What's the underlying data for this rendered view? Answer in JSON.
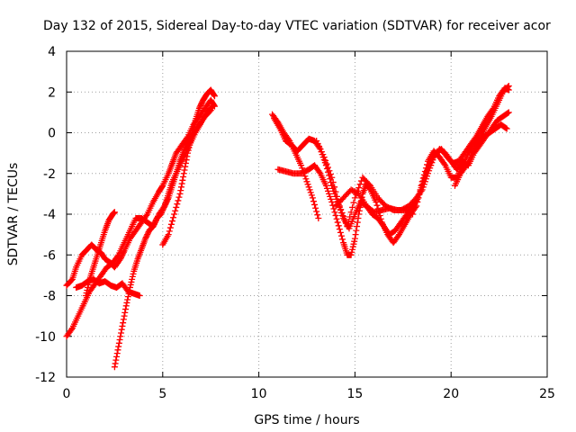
{
  "chart_data": {
    "type": "scatter",
    "title": "Day 132 of 2015, Sidereal Day-to-day VTEC variation (SDTVAR) for receiver acor",
    "xlabel": "GPS time / hours",
    "ylabel": "SDTVAR / TECUs",
    "xlim": [
      0,
      25
    ],
    "ylim": [
      -12,
      4
    ],
    "x_ticks": [
      0,
      5,
      10,
      15,
      20,
      25
    ],
    "y_ticks": [
      -12,
      -10,
      -8,
      -6,
      -4,
      -2,
      0,
      2,
      4
    ],
    "grid": true,
    "marker": "plus",
    "color": "#ff0000",
    "series": [
      {
        "points": [
          [
            0.0,
            -7.5
          ],
          [
            0.3,
            -7.2
          ],
          [
            0.5,
            -6.6
          ],
          [
            0.8,
            -6.0
          ],
          [
            1.0,
            -5.8
          ],
          [
            1.3,
            -5.5
          ],
          [
            1.5,
            -5.7
          ],
          [
            1.8,
            -5.9
          ],
          [
            2.0,
            -6.2
          ],
          [
            2.3,
            -6.4
          ],
          [
            2.5,
            -6.6
          ],
          [
            2.8,
            -6.2
          ],
          [
            3.0,
            -5.8
          ],
          [
            3.3,
            -5.2
          ],
          [
            3.6,
            -4.8
          ],
          [
            3.9,
            -4.4
          ],
          [
            4.2,
            -4.0
          ],
          [
            4.5,
            -3.4
          ],
          [
            4.8,
            -2.9
          ],
          [
            5.0,
            -2.6
          ],
          [
            5.3,
            -2.0
          ],
          [
            5.5,
            -1.5
          ],
          [
            5.7,
            -1.0
          ],
          [
            6.0,
            -0.6
          ],
          [
            6.3,
            -0.2
          ],
          [
            6.6,
            0.4
          ],
          [
            6.9,
            0.8
          ],
          [
            7.2,
            1.2
          ],
          [
            7.5,
            1.6
          ],
          [
            7.7,
            1.3
          ]
        ]
      },
      {
        "points": [
          [
            0.0,
            -10.0
          ],
          [
            0.3,
            -9.6
          ],
          [
            0.6,
            -9.0
          ],
          [
            0.9,
            -8.4
          ],
          [
            1.2,
            -7.8
          ],
          [
            1.5,
            -7.4
          ],
          [
            1.8,
            -7.0
          ],
          [
            2.1,
            -6.6
          ],
          [
            2.4,
            -6.4
          ],
          [
            2.7,
            -6.0
          ],
          [
            3.0,
            -5.4
          ],
          [
            3.3,
            -4.8
          ],
          [
            3.6,
            -4.2
          ],
          [
            3.9,
            -4.2
          ],
          [
            4.2,
            -4.4
          ],
          [
            4.5,
            -4.6
          ],
          [
            4.8,
            -4.0
          ],
          [
            5.1,
            -3.6
          ],
          [
            5.3,
            -3.0
          ],
          [
            5.5,
            -2.4
          ],
          [
            5.8,
            -1.8
          ],
          [
            6.1,
            -1.2
          ],
          [
            6.4,
            -0.6
          ],
          [
            6.7,
            0.0
          ],
          [
            7.0,
            0.5
          ],
          [
            7.3,
            1.0
          ],
          [
            7.6,
            1.3
          ]
        ]
      },
      {
        "points": [
          [
            0.5,
            -7.6
          ],
          [
            0.8,
            -7.5
          ],
          [
            1.1,
            -7.3
          ],
          [
            1.4,
            -7.2
          ],
          [
            1.7,
            -7.4
          ],
          [
            2.0,
            -7.3
          ],
          [
            2.3,
            -7.5
          ],
          [
            2.6,
            -7.6
          ],
          [
            2.9,
            -7.4
          ],
          [
            3.2,
            -7.8
          ],
          [
            3.5,
            -7.9
          ],
          [
            3.8,
            -8.0
          ]
        ]
      },
      {
        "points": [
          [
            1.0,
            -8.0
          ],
          [
            1.2,
            -7.2
          ],
          [
            1.4,
            -6.6
          ],
          [
            1.6,
            -6.0
          ],
          [
            1.8,
            -5.4
          ],
          [
            2.0,
            -4.8
          ],
          [
            2.2,
            -4.3
          ],
          [
            2.4,
            -4.0
          ],
          [
            2.5,
            -3.9
          ]
        ]
      },
      {
        "points": [
          [
            2.5,
            -11.5
          ],
          [
            2.7,
            -10.5
          ],
          [
            2.9,
            -9.5
          ],
          [
            3.1,
            -8.5
          ],
          [
            3.3,
            -7.6
          ],
          [
            3.5,
            -6.8
          ],
          [
            3.7,
            -6.2
          ],
          [
            3.9,
            -5.7
          ],
          [
            4.1,
            -5.2
          ],
          [
            4.3,
            -4.8
          ],
          [
            4.5,
            -4.6
          ],
          [
            4.7,
            -4.2
          ],
          [
            4.9,
            -4.0
          ],
          [
            5.1,
            -3.6
          ],
          [
            5.3,
            -3.2
          ],
          [
            5.5,
            -2.6
          ],
          [
            5.7,
            -2.0
          ],
          [
            5.9,
            -1.4
          ],
          [
            6.1,
            -0.9
          ],
          [
            6.3,
            -0.5
          ],
          [
            6.6,
            0.0
          ],
          [
            6.9,
            0.4
          ],
          [
            7.2,
            0.8
          ],
          [
            7.5,
            1.1
          ]
        ]
      },
      {
        "points": [
          [
            5.0,
            -5.5
          ],
          [
            5.3,
            -5.0
          ],
          [
            5.6,
            -4.0
          ],
          [
            5.9,
            -3.0
          ],
          [
            6.1,
            -2.0
          ],
          [
            6.3,
            -1.0
          ],
          [
            6.5,
            -0.2
          ],
          [
            6.7,
            0.6
          ],
          [
            6.9,
            1.2
          ],
          [
            7.1,
            1.6
          ],
          [
            7.3,
            1.9
          ],
          [
            7.5,
            2.1
          ],
          [
            7.7,
            1.8
          ]
        ]
      },
      {
        "points": [
          [
            10.7,
            0.9
          ],
          [
            11.0,
            0.5
          ],
          [
            11.3,
            0.0
          ],
          [
            11.6,
            -0.4
          ],
          [
            11.9,
            -1.0
          ],
          [
            12.2,
            -1.6
          ],
          [
            12.5,
            -2.4
          ],
          [
            12.8,
            -3.2
          ],
          [
            13.1,
            -4.2
          ]
        ]
      },
      {
        "points": [
          [
            10.8,
            0.7
          ],
          [
            11.1,
            0.2
          ],
          [
            11.4,
            -0.4
          ],
          [
            11.7,
            -0.6
          ],
          [
            12.0,
            -0.9
          ],
          [
            12.3,
            -0.6
          ],
          [
            12.6,
            -0.3
          ],
          [
            12.9,
            -0.4
          ],
          [
            13.2,
            -0.8
          ],
          [
            13.5,
            -1.6
          ],
          [
            13.8,
            -2.6
          ],
          [
            14.1,
            -3.4
          ],
          [
            14.4,
            -4.2
          ],
          [
            14.7,
            -4.7
          ],
          [
            15.0,
            -4.0
          ],
          [
            15.3,
            -3.4
          ],
          [
            15.6,
            -3.6
          ],
          [
            15.9,
            -4.0
          ],
          [
            16.2,
            -4.2
          ],
          [
            16.5,
            -4.6
          ],
          [
            16.8,
            -5.0
          ],
          [
            17.1,
            -4.8
          ],
          [
            17.4,
            -4.4
          ],
          [
            17.7,
            -4.0
          ],
          [
            18.0,
            -3.6
          ],
          [
            18.3,
            -3.2
          ],
          [
            18.6,
            -2.2
          ],
          [
            18.9,
            -1.5
          ],
          [
            19.2,
            -1.0
          ],
          [
            19.5,
            -0.8
          ],
          [
            19.8,
            -1.2
          ],
          [
            20.1,
            -1.5
          ],
          [
            20.4,
            -1.4
          ],
          [
            20.7,
            -1.0
          ],
          [
            21.0,
            -0.6
          ],
          [
            21.3,
            -0.2
          ],
          [
            21.6,
            0.3
          ],
          [
            21.9,
            0.8
          ],
          [
            22.2,
            1.2
          ],
          [
            22.5,
            1.8
          ],
          [
            22.8,
            2.2
          ],
          [
            23.0,
            2.1
          ]
        ]
      },
      {
        "points": [
          [
            11.0,
            -1.8
          ],
          [
            11.4,
            -1.9
          ],
          [
            11.8,
            -2.0
          ],
          [
            12.2,
            -2.0
          ],
          [
            12.6,
            -1.8
          ],
          [
            12.9,
            -1.6
          ],
          [
            13.2,
            -2.0
          ],
          [
            13.5,
            -2.6
          ],
          [
            13.8,
            -3.4
          ],
          [
            14.1,
            -4.4
          ],
          [
            14.4,
            -5.4
          ],
          [
            14.6,
            -6.0
          ],
          [
            14.8,
            -6.0
          ],
          [
            15.0,
            -5.2
          ],
          [
            15.2,
            -4.0
          ],
          [
            15.4,
            -3.0
          ],
          [
            15.6,
            -2.5
          ],
          [
            15.8,
            -2.8
          ],
          [
            16.1,
            -3.4
          ],
          [
            16.4,
            -4.4
          ],
          [
            16.7,
            -5.0
          ],
          [
            17.0,
            -5.4
          ],
          [
            17.3,
            -5.0
          ],
          [
            17.6,
            -4.5
          ],
          [
            17.9,
            -4.0
          ],
          [
            18.2,
            -3.6
          ],
          [
            18.5,
            -2.4
          ],
          [
            18.8,
            -1.4
          ],
          [
            19.1,
            -0.9
          ],
          [
            19.4,
            -1.2
          ],
          [
            19.7,
            -1.6
          ],
          [
            20.0,
            -2.2
          ],
          [
            20.3,
            -2.2
          ],
          [
            20.6,
            -1.6
          ],
          [
            20.9,
            -1.0
          ],
          [
            21.2,
            -0.6
          ],
          [
            21.5,
            -0.2
          ],
          [
            21.8,
            0.3
          ],
          [
            22.1,
            0.8
          ],
          [
            22.4,
            1.4
          ],
          [
            22.7,
            2.0
          ],
          [
            23.0,
            2.3
          ]
        ]
      },
      {
        "points": [
          [
            13.0,
            -0.4
          ],
          [
            13.4,
            -1.2
          ],
          [
            13.8,
            -2.2
          ],
          [
            14.2,
            -3.6
          ],
          [
            14.6,
            -4.6
          ],
          [
            15.0,
            -3.2
          ],
          [
            15.4,
            -2.2
          ],
          [
            15.8,
            -2.6
          ],
          [
            16.2,
            -3.2
          ],
          [
            16.6,
            -3.6
          ],
          [
            17.0,
            -3.8
          ],
          [
            17.4,
            -3.8
          ],
          [
            17.8,
            -3.6
          ],
          [
            18.2,
            -3.2
          ],
          [
            18.5,
            -2.8
          ],
          [
            18.8,
            -2.0
          ],
          [
            19.1,
            -1.2
          ],
          [
            19.4,
            -0.8
          ],
          [
            19.7,
            -1.0
          ],
          [
            20.0,
            -1.4
          ],
          [
            20.3,
            -1.8
          ],
          [
            20.6,
            -1.4
          ],
          [
            20.9,
            -1.6
          ],
          [
            21.2,
            -1.0
          ],
          [
            21.5,
            -0.6
          ],
          [
            21.8,
            -0.2
          ],
          [
            22.1,
            0.2
          ],
          [
            22.4,
            0.6
          ],
          [
            22.7,
            0.8
          ],
          [
            23.0,
            1.0
          ]
        ]
      },
      {
        "points": [
          [
            20.2,
            -2.6
          ],
          [
            20.5,
            -2.0
          ],
          [
            20.8,
            -1.6
          ],
          [
            21.1,
            -1.0
          ],
          [
            21.4,
            -0.6
          ],
          [
            21.7,
            -0.2
          ],
          [
            22.0,
            0.0
          ],
          [
            22.3,
            0.2
          ],
          [
            22.6,
            0.4
          ],
          [
            22.9,
            0.2
          ]
        ]
      },
      {
        "points": [
          [
            18.0,
            -4.0
          ],
          [
            17.6,
            -3.8
          ],
          [
            17.2,
            -3.8
          ],
          [
            16.8,
            -3.7
          ],
          [
            16.4,
            -3.8
          ],
          [
            16.0,
            -3.9
          ],
          [
            15.6,
            -3.6
          ],
          [
            15.2,
            -3.0
          ],
          [
            14.8,
            -2.8
          ],
          [
            14.4,
            -3.2
          ],
          [
            14.0,
            -3.6
          ]
        ]
      }
    ]
  }
}
